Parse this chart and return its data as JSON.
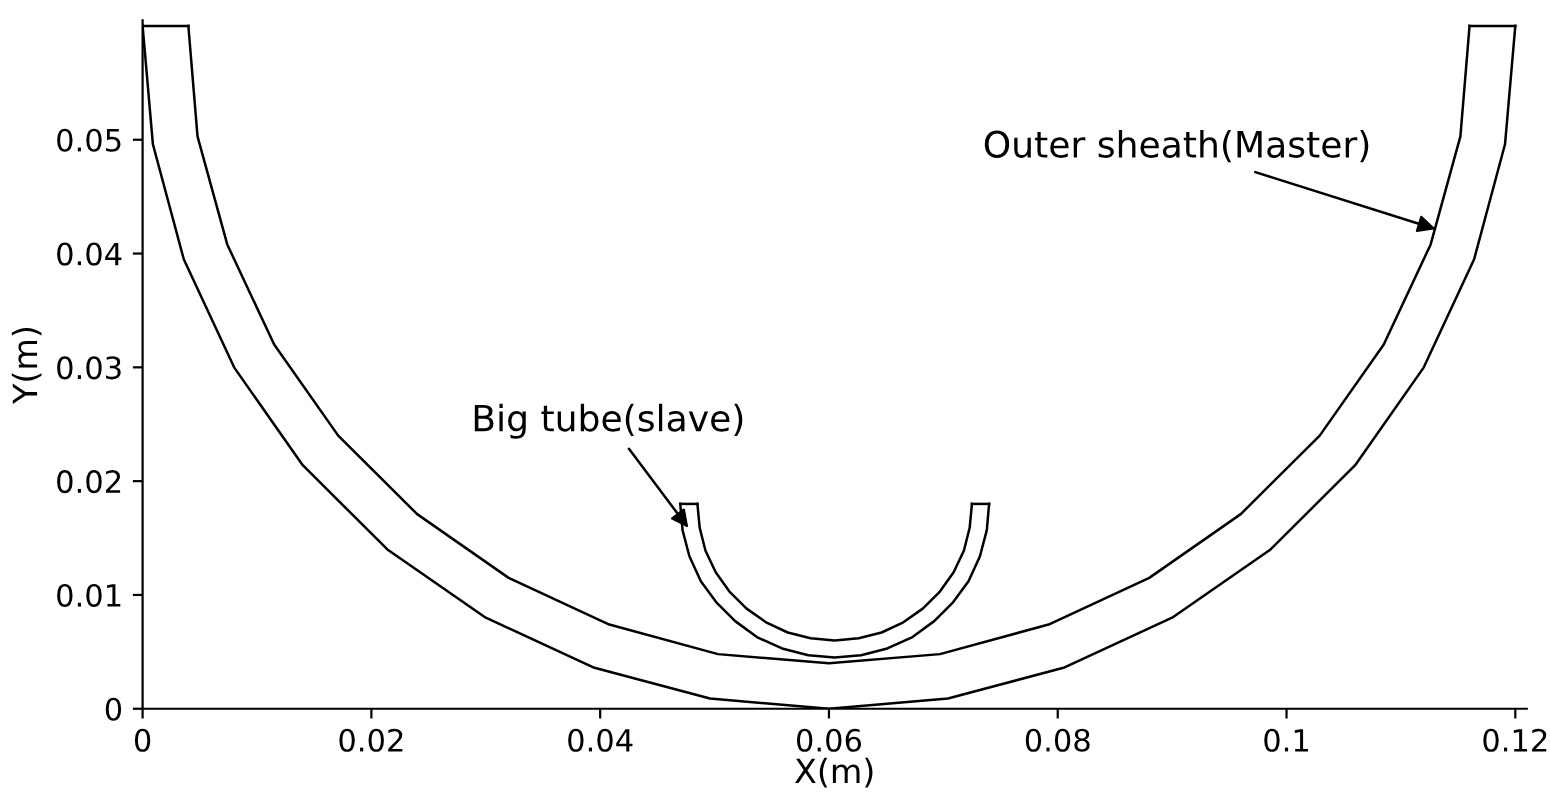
{
  "chart_data": {
    "type": "line",
    "xlabel": "X(m)",
    "ylabel": "Y(m)",
    "xlim": [
      0,
      0.121
    ],
    "ylim": [
      0,
      0.0605
    ],
    "xticks": [
      0,
      0.02,
      0.04,
      0.06,
      0.08,
      0.1,
      0.12
    ],
    "yticks": [
      0,
      0.01,
      0.02,
      0.03,
      0.04,
      0.05
    ],
    "grid": false,
    "legend": false,
    "marker": "none",
    "line_style": "solid",
    "series": [
      {
        "color": "#000000",
        "x": [
          0,
          0.0009,
          0.0036,
          0.008,
          0.014,
          0.0214,
          0.03,
          0.0395,
          0.0496,
          0.06,
          0.0704,
          0.0805,
          0.09,
          0.0986,
          0.106,
          0.112,
          0.1164,
          0.1191,
          0.12
        ],
        "values": [
          0.06,
          0.0496,
          0.0395,
          0.03,
          0.0214,
          0.014,
          0.008,
          0.0036,
          0.0009,
          0,
          0.0009,
          0.0036,
          0.008,
          0.014,
          0.0214,
          0.03,
          0.0395,
          0.0496,
          0.06
        ]
      },
      {
        "color": "#000000",
        "x": [
          0.004,
          0.0048,
          0.0074,
          0.0115,
          0.0171,
          0.024,
          0.032,
          0.0408,
          0.0503,
          0.06,
          0.0697,
          0.0792,
          0.088,
          0.096,
          0.1029,
          0.1085,
          0.1126,
          0.1152,
          0.116
        ],
        "values": [
          0.06,
          0.0503,
          0.0408,
          0.032,
          0.024,
          0.0171,
          0.0115,
          0.0074,
          0.0048,
          0.004,
          0.0048,
          0.0074,
          0.0115,
          0.0171,
          0.024,
          0.032,
          0.0408,
          0.0503,
          0.06
        ]
      },
      {
        "color": "#000000",
        "x": [
          0,
          0.004
        ],
        "values": [
          0.06,
          0.06
        ]
      },
      {
        "color": "#000000",
        "x": [
          0.116,
          0.12
        ],
        "values": [
          0.06,
          0.06
        ]
      },
      {
        "color": "#000000",
        "x": [
          0.047,
          0.0472,
          0.0478,
          0.0488,
          0.0502,
          0.0518,
          0.0537,
          0.0559,
          0.0582,
          0.0605,
          0.0628,
          0.0651,
          0.0673,
          0.0692,
          0.0708,
          0.0722,
          0.0732,
          0.0738,
          0.074
        ],
        "values": [
          0.018,
          0.0157,
          0.0134,
          0.0112,
          0.0093,
          0.0077,
          0.0063,
          0.0053,
          0.0047,
          0.0045,
          0.0047,
          0.0053,
          0.0063,
          0.0077,
          0.0093,
          0.0112,
          0.0134,
          0.0157,
          0.018
        ]
      },
      {
        "color": "#000000",
        "x": [
          0.0485,
          0.0487,
          0.0492,
          0.0501,
          0.0513,
          0.0528,
          0.0545,
          0.0564,
          0.0584,
          0.0605,
          0.0626,
          0.0646,
          0.0665,
          0.0682,
          0.0697,
          0.0709,
          0.0718,
          0.0723,
          0.0725
        ],
        "values": [
          0.018,
          0.0159,
          0.0139,
          0.012,
          0.0103,
          0.0088,
          0.0076,
          0.0067,
          0.0062,
          0.006,
          0.0062,
          0.0067,
          0.0076,
          0.0088,
          0.0103,
          0.012,
          0.0139,
          0.0159,
          0.018
        ]
      },
      {
        "color": "#000000",
        "x": [
          0.047,
          0.0485
        ],
        "values": [
          0.018,
          0.018
        ]
      },
      {
        "color": "#000000",
        "x": [
          0.0725,
          0.074
        ],
        "values": [
          0.018,
          0.018
        ]
      }
    ],
    "annotations": [
      {
        "text": "Outer sheath(Master)",
        "x": 0.1135,
        "y": 0.042
      },
      {
        "text": "Big tube(slave)",
        "x": 0.048,
        "y": 0.0155
      }
    ]
  }
}
